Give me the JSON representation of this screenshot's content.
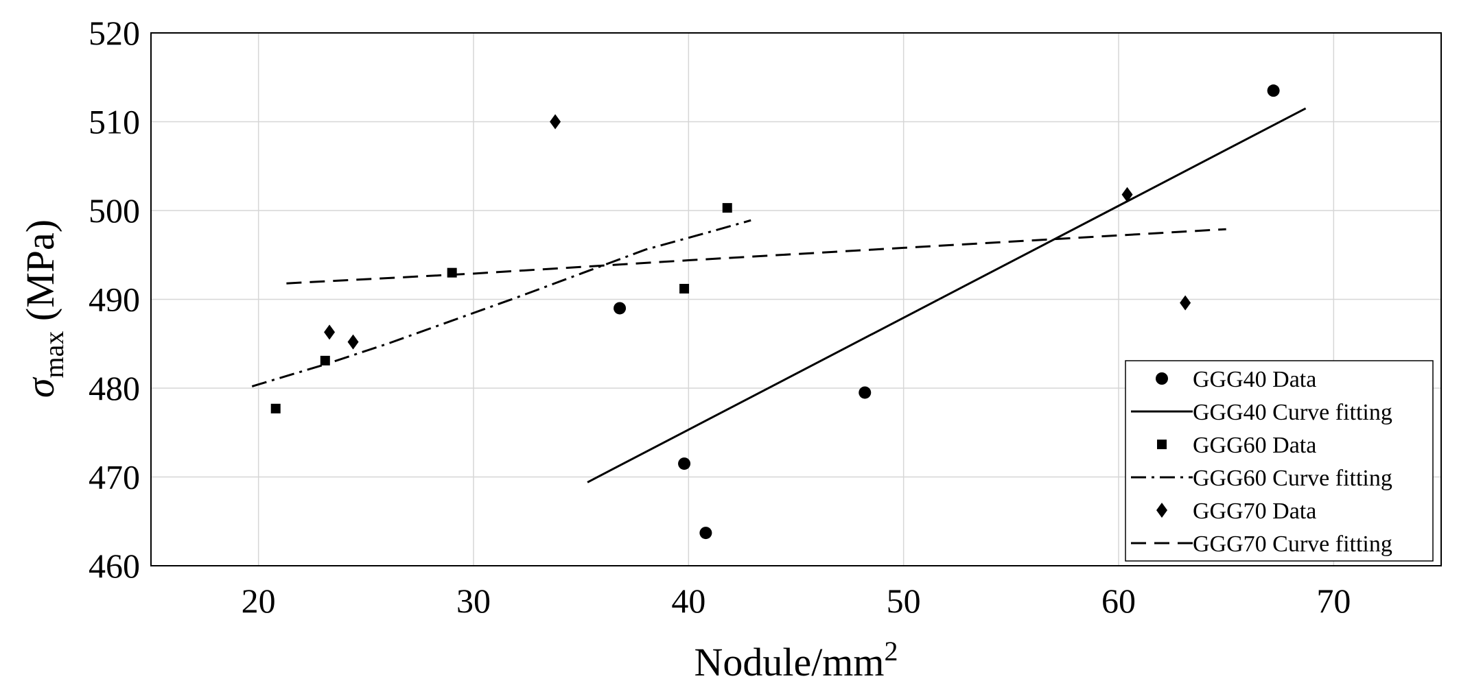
{
  "chart_data": {
    "type": "scatter",
    "title": "",
    "xlabel": {
      "base": "Nodule/mm",
      "sup": "2"
    },
    "ylabel": {
      "sym": "σ",
      "sub": "max",
      "rest": " (MPa)"
    },
    "xlim": [
      15,
      75
    ],
    "ylim": [
      460,
      520
    ],
    "xticks": [
      20,
      30,
      40,
      50,
      60,
      70
    ],
    "yticks": [
      460,
      470,
      480,
      490,
      500,
      510,
      520
    ],
    "grid": true,
    "legend_position": "bottom-right",
    "series": [
      {
        "name": "GGG40 Data",
        "kind": "points",
        "marker": "circle",
        "x": [
          36.8,
          39.8,
          40.8,
          48.2,
          67.2
        ],
        "y": [
          489.0,
          471.5,
          463.7,
          479.5,
          513.5
        ]
      },
      {
        "name": "GGG40 Curve fitting",
        "kind": "line",
        "dash": "solid",
        "x": [
          35.3,
          68.7
        ],
        "y": [
          469.4,
          511.5
        ]
      },
      {
        "name": "GGG60 Data",
        "kind": "points",
        "marker": "square",
        "x": [
          20.8,
          23.1,
          29.0,
          39.8,
          41.8
        ],
        "y": [
          477.7,
          483.1,
          493.0,
          491.2,
          500.3
        ]
      },
      {
        "name": "GGG60 Curve fitting",
        "kind": "line",
        "dash": "dashdot",
        "x": [
          19.7,
          23.0,
          26.0,
          29.0,
          32.0,
          35.0,
          38.0,
          41.0,
          42.9
        ],
        "y": [
          480.2,
          482.6,
          485.0,
          487.6,
          490.2,
          492.9,
          495.6,
          497.6,
          498.9
        ]
      },
      {
        "name": "GGG70 Data",
        "kind": "points",
        "marker": "diamond",
        "x": [
          23.3,
          24.4,
          33.8,
          60.4,
          63.1
        ],
        "y": [
          486.3,
          485.2,
          510.0,
          501.8,
          489.6
        ]
      },
      {
        "name": "GGG70 Curve fitting",
        "kind": "line",
        "dash": "dashed",
        "x": [
          21.3,
          30.0,
          40.0,
          50.0,
          60.0,
          65.0
        ],
        "y": [
          491.8,
          492.9,
          494.4,
          495.8,
          497.2,
          497.9
        ]
      }
    ]
  }
}
